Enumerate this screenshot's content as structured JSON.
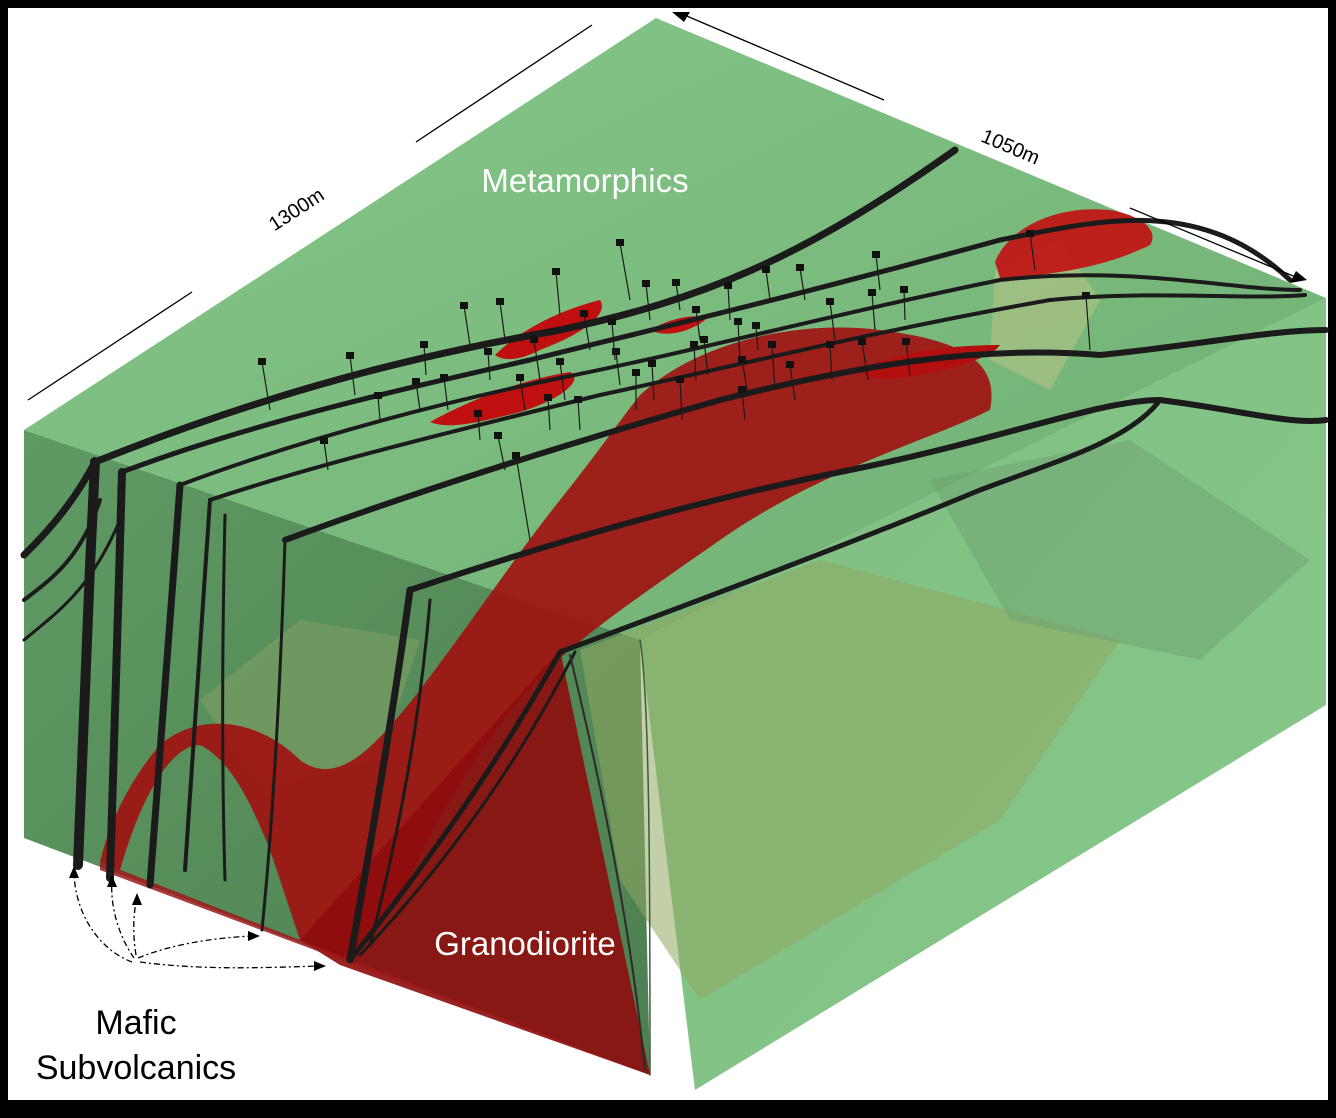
{
  "labels": {
    "top_unit": "Metamorphics",
    "bottom_unit": "Granodiorite",
    "dyke_label_line1": "Mafic",
    "dyke_label_line2": "Subvolcanics",
    "dim_length": "1300m",
    "dim_width": "1050m"
  },
  "colors": {
    "background": "#000000",
    "frame": "#ffffff",
    "metamorphics": "#7fc383",
    "granodiorite": "#a30f0f",
    "dyke": "#1b1b1b",
    "drill_collar": "#111111"
  }
}
